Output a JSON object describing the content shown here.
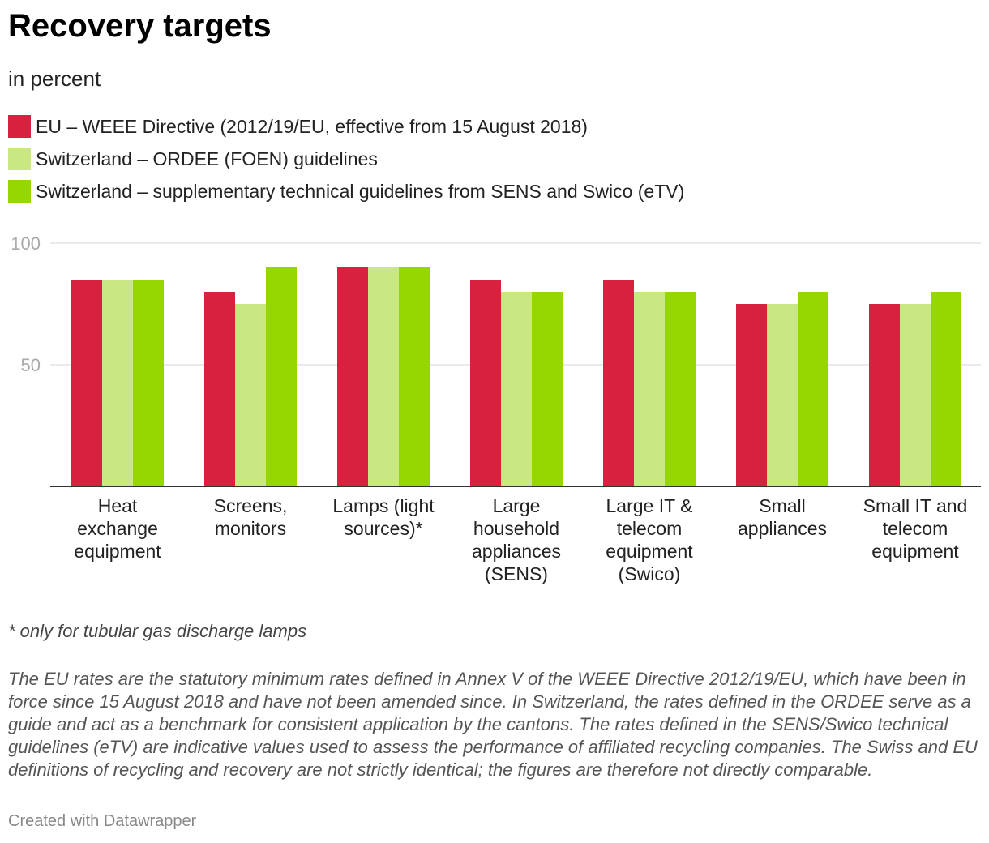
{
  "header": {
    "title": "Recovery targets",
    "subtitle": "in percent"
  },
  "chart_data": {
    "type": "bar",
    "categories": [
      [
        "Heat",
        "exchange",
        "equipment"
      ],
      [
        "Screens,",
        "monitors"
      ],
      [
        "Lamps (light",
        "sources)*"
      ],
      [
        "Large",
        "household",
        "appliances",
        "(SENS)"
      ],
      [
        "Large IT &",
        "telecom",
        "equipment",
        "(Swico)"
      ],
      [
        "Small",
        "appliances"
      ],
      [
        "Small IT and",
        "telecom",
        "equipment"
      ]
    ],
    "series": [
      {
        "name": "EU – WEEE Directive (2012/19/EU, effective from 15 August 2018)",
        "color": "#d9203f",
        "values": [
          85,
          80,
          90,
          85,
          85,
          75,
          75
        ]
      },
      {
        "name": "Switzerland – ORDEE (FOEN) guidelines",
        "color": "#c9e882",
        "values": [
          85,
          75,
          90,
          80,
          80,
          75,
          75
        ]
      },
      {
        "name": "Switzerland – supplementary technical guidelines from SENS and Swico (eTV)",
        "color": "#97d700",
        "values": [
          85,
          90,
          90,
          80,
          80,
          80,
          80
        ]
      }
    ],
    "yticks": [
      50,
      100
    ],
    "ylim": [
      0,
      100
    ],
    "grid": true,
    "legend": "top-left"
  },
  "footer": {
    "note": "* only for tubular gas discharge lamps",
    "description": "The EU rates are the statutory minimum rates defined in Annex V of the WEEE Directive 2012/19/EU, which have been in force since 15 August 2018 and have not been amended since. In Switzerland, the rates defined in the ORDEE serve as a guide and act as a benchmark for consistent application by the cantons. The rates defined in the SENS/Swico technical guidelines (eTV) are indicative values used to assess the performance of affiliated recycling companies. The Swiss and EU definitions of recycling and recovery are not strictly identical; the figures are therefore not directly comparable.",
    "credit": "Created with Datawrapper"
  }
}
